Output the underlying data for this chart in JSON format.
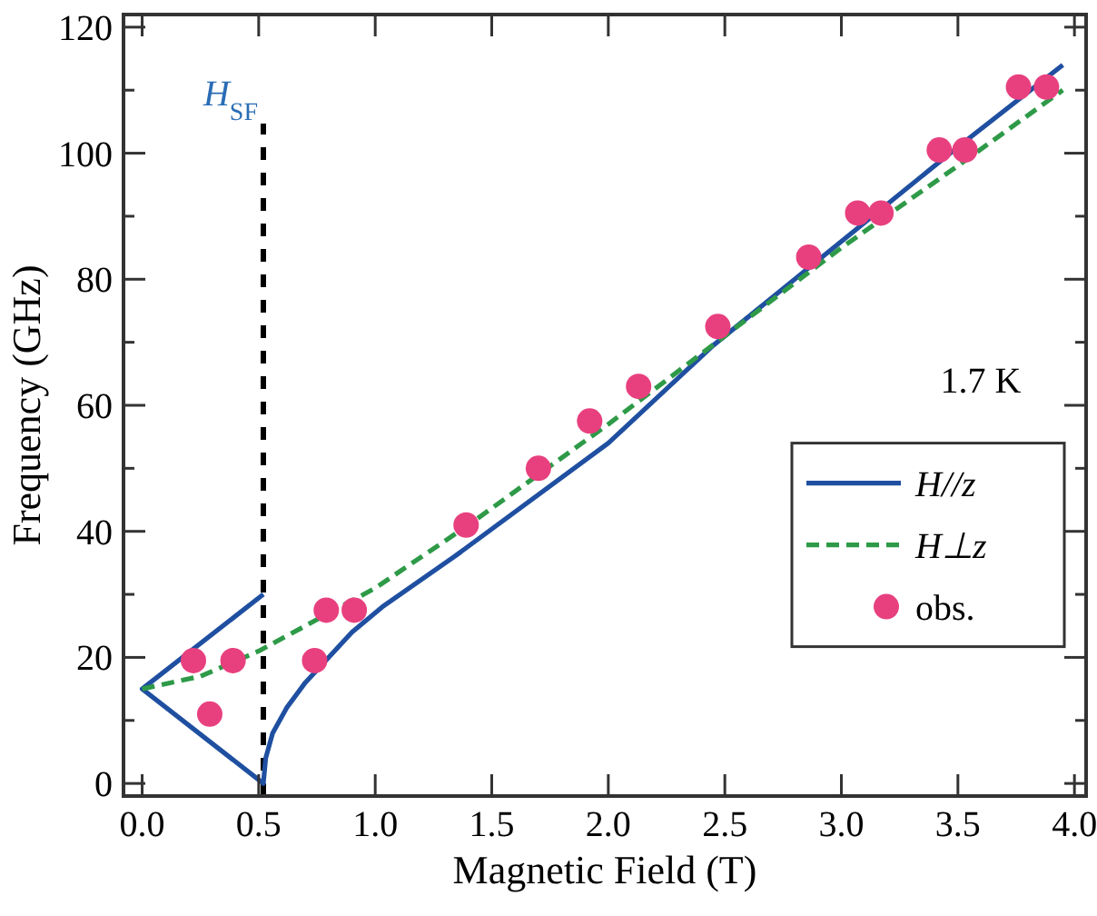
{
  "chart_data": {
    "type": "line",
    "xlabel": "Magnetic Field (T)",
    "ylabel": "Frequency (GHz)",
    "xlim": [
      -0.08,
      4.05
    ],
    "ylim": [
      -2,
      122
    ],
    "xticks": [
      {
        "value": 0,
        "label": "0.0"
      },
      {
        "value": 0.5,
        "label": "0.5"
      },
      {
        "value": 1,
        "label": "1.0"
      },
      {
        "value": 1.5,
        "label": "1.5"
      },
      {
        "value": 2,
        "label": "2.0"
      },
      {
        "value": 2.5,
        "label": "2.5"
      },
      {
        "value": 3,
        "label": "3.0"
      },
      {
        "value": 3.5,
        "label": "3.5"
      },
      {
        "value": 4,
        "label": "4.0"
      }
    ],
    "yticks": [
      0,
      {
        "value": 10,
        "label": null
      },
      20,
      {
        "value": 30,
        "label": null
      },
      40,
      {
        "value": 50,
        "label": null
      },
      60,
      {
        "value": 70,
        "label": null
      },
      80,
      {
        "value": 90,
        "label": null
      },
      100,
      {
        "value": 110,
        "label": null
      },
      120
    ],
    "series": [
      {
        "name": "H//z",
        "type": "line",
        "color": "#1f4fa0",
        "line_style": "solid",
        "marker": "none",
        "x": [
          0.52,
          0,
          0.52,
          0.53,
          0.56,
          0.62,
          0.7,
          0.8,
          0.9,
          1.03,
          1.34,
          2.0,
          2.45,
          2.8,
          3.5,
          3.95
        ],
        "values": [
          30,
          15,
          0,
          4,
          8,
          12,
          16,
          20,
          24,
          28,
          36,
          54,
          69.5,
          80,
          101,
          114
        ]
      },
      {
        "name": "H⊥z",
        "type": "line",
        "color": "#2e9a48",
        "line_style": "dashed",
        "marker": "none",
        "x": [
          0,
          0.25,
          0.5,
          0.75,
          1,
          1.4,
          2,
          2.5,
          3,
          3.5,
          3.95
        ],
        "values": [
          15,
          17,
          21,
          26,
          31,
          41,
          57,
          71,
          85,
          98,
          110
        ]
      },
      {
        "name": "obs.",
        "type": "scatter",
        "color": "#e8407f",
        "marker": "circle",
        "x": [
          0.22,
          0.29,
          0.39,
          0.74,
          0.79,
          0.91,
          1.39,
          1.7,
          1.92,
          2.13,
          2.47,
          2.86,
          3.07,
          3.17,
          3.42,
          3.53,
          3.76,
          3.88
        ],
        "values": [
          19.5,
          11,
          19.5,
          19.5,
          27.5,
          27.5,
          41,
          50,
          57.5,
          63,
          72.5,
          83.5,
          90.5,
          90.5,
          100.5,
          100.5,
          110.5,
          110.5
        ]
      }
    ],
    "ref_lines": [
      {
        "axis": "x",
        "value": 0.52,
        "label": "H$_{SF}$",
        "color": "#000000",
        "line_style": "dashed"
      }
    ],
    "annotations": [
      "1.7 K"
    ],
    "legend": "right",
    "grid": false
  }
}
